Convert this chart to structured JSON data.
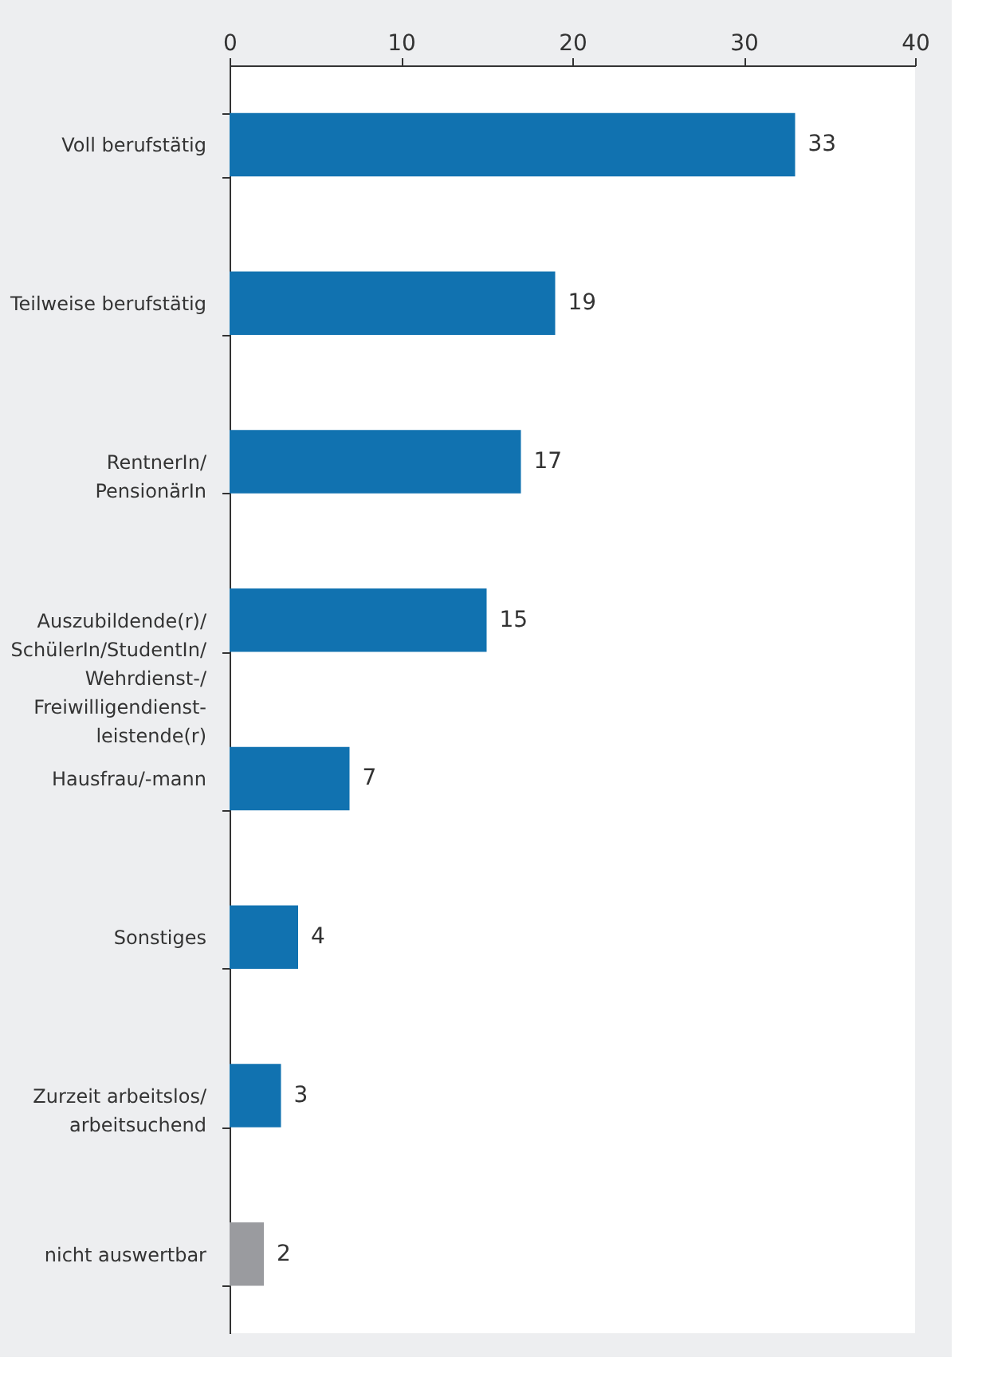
{
  "chart_data": {
    "type": "bar",
    "orientation": "horizontal",
    "categories": [
      "Voll berufstätig",
      "Teilweise berufstätig",
      "RentnerIn/\nPensionärIn",
      "Auszubildende(r)/\nSchülerIn/StudentIn/\nWehrdienst-/\nFreiwilligendienst-\nleistende(r)",
      "Hausfrau/-mann",
      "Sonstiges",
      "Zurzeit arbeitslos/\narbeitsuchend",
      "nicht auswertbar"
    ],
    "values": [
      33,
      19,
      17,
      15,
      7,
      4,
      3,
      2
    ],
    "colors": [
      "#1172b0",
      "#1172b0",
      "#1172b0",
      "#1172b0",
      "#1172b0",
      "#1172b0",
      "#1172b0",
      "#9a9b9f"
    ],
    "xlim": [
      0,
      40
    ],
    "xticks": [
      0,
      10,
      20,
      30,
      40
    ],
    "data_labels": true,
    "grid": false
  }
}
